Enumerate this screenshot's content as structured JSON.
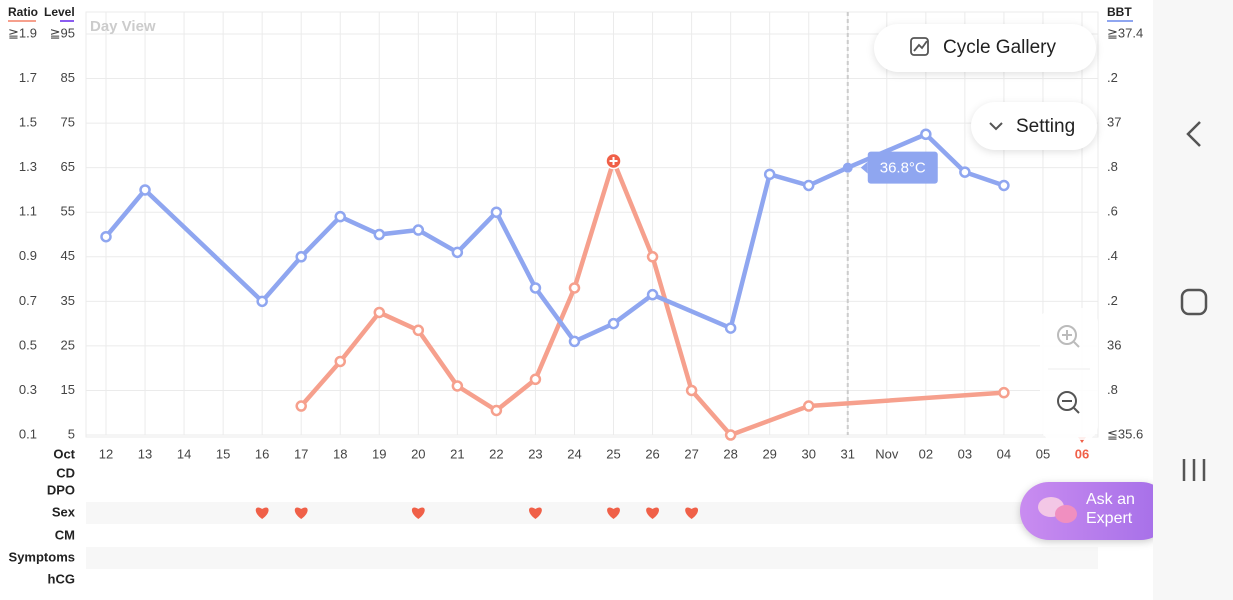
{
  "header": {
    "view": "Day View"
  },
  "buttons": {
    "gallery": "Cycle Gallery",
    "setting": "Setting",
    "expert": "Ask an Expert"
  },
  "chart_data": {
    "type": "line",
    "level_label": "Level",
    "month": "Oct",
    "categories": [
      "12",
      "13",
      "14",
      "15",
      "16",
      "17",
      "18",
      "19",
      "20",
      "21",
      "22",
      "23",
      "24",
      "25",
      "26",
      "27",
      "28",
      "29",
      "30",
      "31",
      "Nov",
      "02",
      "03",
      "04",
      "05",
      "06"
    ],
    "ylim": [
      0.1,
      1.9
    ],
    "yticks": [
      {
        "value": 1.9,
        "label": "≧1.9"
      },
      1.7,
      1.5,
      1.3,
      1.1,
      0.9,
      0.7,
      0.5,
      0.3,
      0.1
    ],
    "level_lim": [
      5,
      95
    ],
    "level_ticks": [
      {
        "value": 95,
        "label": "≧95"
      },
      85,
      75,
      65,
      55,
      45,
      35,
      25,
      15,
      5
    ],
    "y2lim": [
      35.6,
      37.4
    ],
    "y2ticks": [
      {
        "value": 37.4,
        "label": "≧37.4"
      },
      {
        "value": 37.2,
        "label": ".2"
      },
      37,
      {
        "value": 36.8,
        "label": ".8"
      },
      {
        "value": 36.6,
        "label": ".6"
      },
      {
        "value": 36.4,
        "label": ".4"
      },
      {
        "value": 36.2,
        "label": ".2"
      },
      36,
      {
        "value": 35.8,
        "label": ".8"
      },
      {
        "value": 35.6,
        "label": "≦35.6"
      }
    ],
    "grid": true,
    "series": [
      {
        "name": "Ratio",
        "color": "#f6a08d",
        "x": [
          "17",
          "18",
          "19",
          "20",
          "21",
          "22",
          "23",
          "24",
          "25",
          "26",
          "27",
          "28",
          "30",
          "04"
        ],
        "values": [
          0.23,
          0.43,
          0.65,
          0.57,
          0.32,
          0.21,
          0.35,
          0.76,
          1.33,
          0.9,
          0.3,
          0.1,
          0.23,
          0.29
        ]
      },
      {
        "name": "BBT",
        "color": "#8fa6f0",
        "axis": "y2",
        "x": [
          "12",
          "13",
          "16",
          "17",
          "18",
          "19",
          "20",
          "21",
          "22",
          "23",
          "24",
          "25",
          "26",
          "28",
          "29",
          "30",
          "31",
          "02",
          "03",
          "04"
        ],
        "values": [
          36.49,
          36.7,
          36.2,
          36.4,
          36.58,
          36.5,
          36.52,
          36.42,
          36.6,
          36.26,
          36.02,
          36.1,
          36.23,
          36.08,
          36.77,
          36.72,
          36.8,
          36.95,
          36.78,
          36.72
        ]
      }
    ],
    "tooltip": {
      "x": "31",
      "label": "36.8°C"
    },
    "rows": [
      "CD",
      "DPO",
      "Sex",
      "CM",
      "Symptoms",
      "hCG"
    ],
    "sex_days": [
      "16",
      "17",
      "20",
      "23",
      "25",
      "26",
      "27"
    ]
  }
}
